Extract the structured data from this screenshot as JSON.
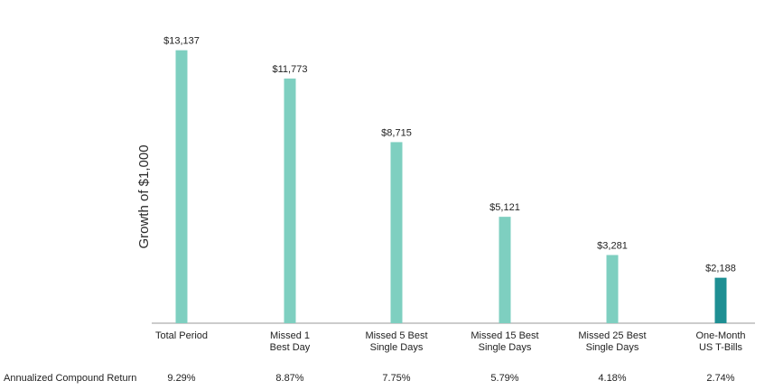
{
  "chart_data": {
    "type": "bar",
    "ylabel": "Growth of $1,000",
    "categories": [
      [
        "Total Period"
      ],
      [
        "Missed 1",
        "Best Day"
      ],
      [
        "Missed 5 Best",
        "Single Days"
      ],
      [
        "Missed 15 Best",
        "Single Days"
      ],
      [
        "Missed 25 Best",
        "Single Days"
      ],
      [
        "One-Month",
        "US T-Bills"
      ]
    ],
    "values": [
      13137,
      11773,
      8715,
      5121,
      3281,
      2188
    ],
    "value_labels": [
      "$13,137",
      "$11,773",
      "$8,715",
      "$5,121",
      "$3,281",
      "$2,188"
    ],
    "colors": [
      "#7ecfc0",
      "#7ecfc0",
      "#7ecfc0",
      "#7ecfc0",
      "#7ecfc0",
      "#1e8f93"
    ],
    "ylim": [
      0,
      13600
    ],
    "grid": false
  },
  "returns_row": {
    "label": "Annualized Compound Return",
    "values": [
      "9.29%",
      "8.87%",
      "7.75%",
      "5.79%",
      "4.18%",
      "2.74%"
    ]
  }
}
